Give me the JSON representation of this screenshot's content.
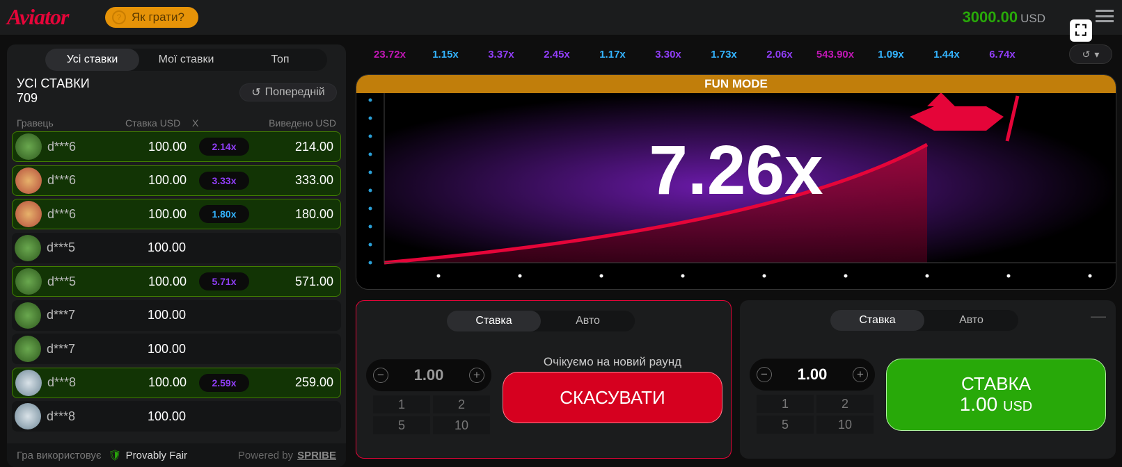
{
  "header": {
    "logo": "Aviator",
    "how_to_play": "Як грати?",
    "balance": "3000.00",
    "currency": "USD"
  },
  "bets_panel": {
    "tabs": [
      "Усі ставки",
      "Мої ставки",
      "Топ"
    ],
    "title": "УСІ СТАВКИ",
    "count": "709",
    "previous": "Попередній",
    "columns": {
      "player": "Гравець",
      "bet": "Ставка USD",
      "x": "X",
      "cashout": "Виведено USD"
    },
    "rows": [
      {
        "player": "d***6",
        "bet": "100.00",
        "x": "2.14x",
        "cashout": "214.00",
        "avatar": "clover",
        "x_color": "#913ef8"
      },
      {
        "player": "d***6",
        "bet": "100.00",
        "x": "3.33x",
        "cashout": "333.00",
        "avatar": "cat",
        "x_color": "#913ef8"
      },
      {
        "player": "d***6",
        "bet": "100.00",
        "x": "1.80x",
        "cashout": "180.00",
        "avatar": "cat",
        "x_color": "#34b4ff"
      },
      {
        "player": "d***5",
        "bet": "100.00",
        "x": "",
        "cashout": "",
        "avatar": "clover"
      },
      {
        "player": "d***5",
        "bet": "100.00",
        "x": "5.71x",
        "cashout": "571.00",
        "avatar": "clover",
        "x_color": "#913ef8"
      },
      {
        "player": "d***7",
        "bet": "100.00",
        "x": "",
        "cashout": "",
        "avatar": "clover"
      },
      {
        "player": "d***7",
        "bet": "100.00",
        "x": "",
        "cashout": "",
        "avatar": "clover"
      },
      {
        "player": "d***8",
        "bet": "100.00",
        "x": "2.59x",
        "cashout": "259.00",
        "avatar": "cash",
        "x_color": "#913ef8"
      },
      {
        "player": "d***8",
        "bet": "100.00",
        "x": "",
        "cashout": "",
        "avatar": "cash"
      }
    ],
    "footer": {
      "uses": "Гра використовує",
      "provably_fair": "Provably Fair",
      "powered_by": "Powered by",
      "brand": "SPRIBE"
    }
  },
  "history": [
    {
      "v": "23.72x",
      "c": "#c017b4"
    },
    {
      "v": "1.15x",
      "c": "#34b4ff"
    },
    {
      "v": "3.37x",
      "c": "#913ef8"
    },
    {
      "v": "2.45x",
      "c": "#913ef8"
    },
    {
      "v": "1.17x",
      "c": "#34b4ff"
    },
    {
      "v": "3.30x",
      "c": "#913ef8"
    },
    {
      "v": "1.73x",
      "c": "#34b4ff"
    },
    {
      "v": "2.06x",
      "c": "#913ef8"
    },
    {
      "v": "543.90x",
      "c": "#c017b4"
    },
    {
      "v": "1.09x",
      "c": "#34b4ff"
    },
    {
      "v": "1.44x",
      "c": "#34b4ff"
    },
    {
      "v": "6.74x",
      "c": "#913ef8"
    }
  ],
  "game": {
    "mode": "FUN MODE",
    "multiplier": "7.26x",
    "accent": "#e50539"
  },
  "bet1": {
    "tabs": [
      "Ставка",
      "Авто"
    ],
    "amount": "1.00",
    "quick": [
      "1",
      "2",
      "5",
      "10"
    ],
    "status": "Очікуємо на новий раунд",
    "cancel": "СКАСУВАТИ"
  },
  "bet2": {
    "tabs": [
      "Ставка",
      "Авто"
    ],
    "amount": "1.00",
    "quick": [
      "1",
      "2",
      "5",
      "10"
    ],
    "bet_label": "СТАВКА",
    "bet_amount": "1.00",
    "currency": "USD"
  }
}
